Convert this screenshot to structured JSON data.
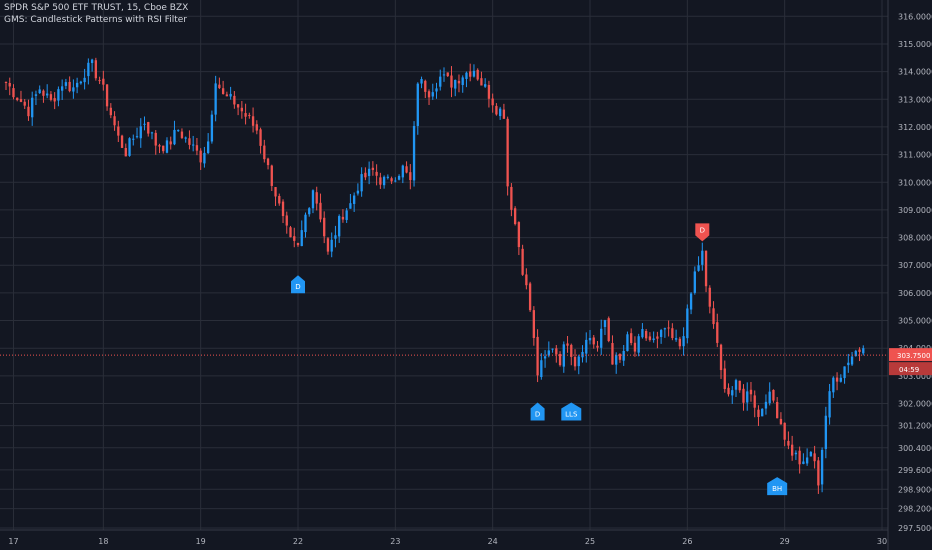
{
  "header": {
    "symbol_line": "SPDR S&P 500 ETF TRUST, 15, Cboe BZX",
    "indicator_line": "GMS: Candlestick Patterns with RSI Filter"
  },
  "colors": {
    "background": "#131722",
    "grid": "#2a2e39",
    "up": "#2196f3",
    "down": "#ef5350",
    "price_line": "#ef5350",
    "axis_text": "#b2b5be"
  },
  "chart_data": {
    "type": "candlestick",
    "symbol": "SPDR S&P 500 ETF TRUST",
    "interval": "15",
    "exchange": "Cboe BZX",
    "ylim": [
      297.5,
      316.3
    ],
    "y_ticks": [
      "316.0000",
      "315.0000",
      "314.0000",
      "313.0000",
      "312.0000",
      "311.0000",
      "310.0000",
      "309.0000",
      "308.0000",
      "307.0000",
      "306.0000",
      "305.0000",
      "304.0000",
      "303.0000",
      "302.0000",
      "301.2000",
      "300.4000",
      "299.6000",
      "298.9000",
      "298.2000",
      "297.5000"
    ],
    "y_tick_values": [
      316.0,
      315.0,
      314.0,
      313.0,
      312.0,
      311.0,
      310.0,
      309.0,
      308.0,
      307.0,
      306.0,
      305.0,
      304.0,
      303.0,
      302.0,
      301.2,
      300.4,
      299.6,
      298.9,
      298.2,
      297.5
    ],
    "x_ticks": [
      {
        "label": "17",
        "index": 2
      },
      {
        "label": "18",
        "index": 26
      },
      {
        "label": "19",
        "index": 52
      },
      {
        "label": "22",
        "index": 78
      },
      {
        "label": "23",
        "index": 104
      },
      {
        "label": "24",
        "index": 130
      },
      {
        "label": "25",
        "index": 156
      },
      {
        "label": "26",
        "index": 182
      },
      {
        "label": "29",
        "index": 208
      },
      {
        "label": "30",
        "index": 234
      }
    ],
    "anchors": [
      [
        0,
        313.6
      ],
      [
        3,
        313.1
      ],
      [
        6,
        312.6
      ],
      [
        9,
        313.4
      ],
      [
        12,
        312.9
      ],
      [
        15,
        313.6
      ],
      [
        18,
        313.4
      ],
      [
        21,
        314.0
      ],
      [
        23,
        314.2
      ],
      [
        25,
        313.7
      ],
      [
        27,
        312.9
      ],
      [
        30,
        311.6
      ],
      [
        32,
        311.1
      ],
      [
        34,
        311.6
      ],
      [
        37,
        312.2
      ],
      [
        40,
        311.4
      ],
      [
        43,
        311.3
      ],
      [
        46,
        311.9
      ],
      [
        49,
        311.4
      ],
      [
        52,
        310.9
      ],
      [
        54,
        311.5
      ],
      [
        56,
        313.8
      ],
      [
        58,
        313.1
      ],
      [
        61,
        312.9
      ],
      [
        64,
        312.4
      ],
      [
        67,
        311.9
      ],
      [
        70,
        310.5
      ],
      [
        72,
        309.6
      ],
      [
        74,
        308.6
      ],
      [
        76,
        307.8
      ],
      [
        78,
        307.6
      ],
      [
        80,
        308.8
      ],
      [
        82,
        309.8
      ],
      [
        84,
        308.8
      ],
      [
        86,
        307.4
      ],
      [
        88,
        308.2
      ],
      [
        90,
        308.9
      ],
      [
        92,
        309.2
      ],
      [
        94,
        309.9
      ],
      [
        96,
        310.2
      ],
      [
        98,
        310.4
      ],
      [
        100,
        310.1
      ],
      [
        102,
        310.0
      ],
      [
        104,
        310.3
      ],
      [
        106,
        310.5
      ],
      [
        108,
        310.0
      ],
      [
        110,
        313.7
      ],
      [
        113,
        313.3
      ],
      [
        116,
        313.8
      ],
      [
        119,
        313.6
      ],
      [
        122,
        313.9
      ],
      [
        125,
        314.1
      ],
      [
        127,
        313.6
      ],
      [
        129,
        313.2
      ],
      [
        131,
        312.7
      ],
      [
        133,
        312.5
      ],
      [
        134,
        309.9
      ],
      [
        136,
        308.5
      ],
      [
        138,
        306.9
      ],
      [
        140,
        305.4
      ],
      [
        142,
        303.1
      ],
      [
        144,
        303.6
      ],
      [
        146,
        304.1
      ],
      [
        148,
        303.6
      ],
      [
        150,
        304.3
      ],
      [
        152,
        303.5
      ],
      [
        154,
        304.1
      ],
      [
        156,
        304.4
      ],
      [
        158,
        304.0
      ],
      [
        160,
        305.0
      ],
      [
        162,
        303.6
      ],
      [
        164,
        303.5
      ],
      [
        166,
        304.3
      ],
      [
        168,
        303.9
      ],
      [
        170,
        304.5
      ],
      [
        172,
        304.3
      ],
      [
        174,
        304.2
      ],
      [
        176,
        304.7
      ],
      [
        178,
        304.3
      ],
      [
        180,
        304.1
      ],
      [
        182,
        305.2
      ],
      [
        184,
        306.7
      ],
      [
        186,
        307.4
      ],
      [
        187,
        306.1
      ],
      [
        189,
        304.9
      ],
      [
        191,
        303.1
      ],
      [
        193,
        302.4
      ],
      [
        195,
        302.6
      ],
      [
        197,
        302.2
      ],
      [
        199,
        302.5
      ],
      [
        201,
        301.5
      ],
      [
        203,
        302.3
      ],
      [
        205,
        302.1
      ],
      [
        207,
        301.3
      ],
      [
        209,
        300.4
      ],
      [
        211,
        300.1
      ],
      [
        213,
        299.7
      ],
      [
        215,
        300.3
      ],
      [
        217,
        299.2
      ],
      [
        219,
        301.6
      ],
      [
        221,
        302.9
      ],
      [
        223,
        303.1
      ],
      [
        225,
        303.6
      ],
      [
        227,
        303.9
      ],
      [
        229,
        304.0
      ]
    ],
    "signals": [
      {
        "label": "D",
        "type": "bullish",
        "bar": 78,
        "price": 307.0
      },
      {
        "label": "D",
        "type": "bullish",
        "bar": 142,
        "price": 302.4
      },
      {
        "label": "LLS",
        "type": "bullish",
        "bar": 151,
        "price": 302.4
      },
      {
        "label": "D",
        "type": "bearish",
        "bar": 186,
        "price": 307.5
      },
      {
        "label": "BH",
        "type": "bullish",
        "bar": 206,
        "price": 299.7
      }
    ],
    "current_price": "303.7500",
    "countdown": "04:59",
    "current_value": 303.75
  }
}
